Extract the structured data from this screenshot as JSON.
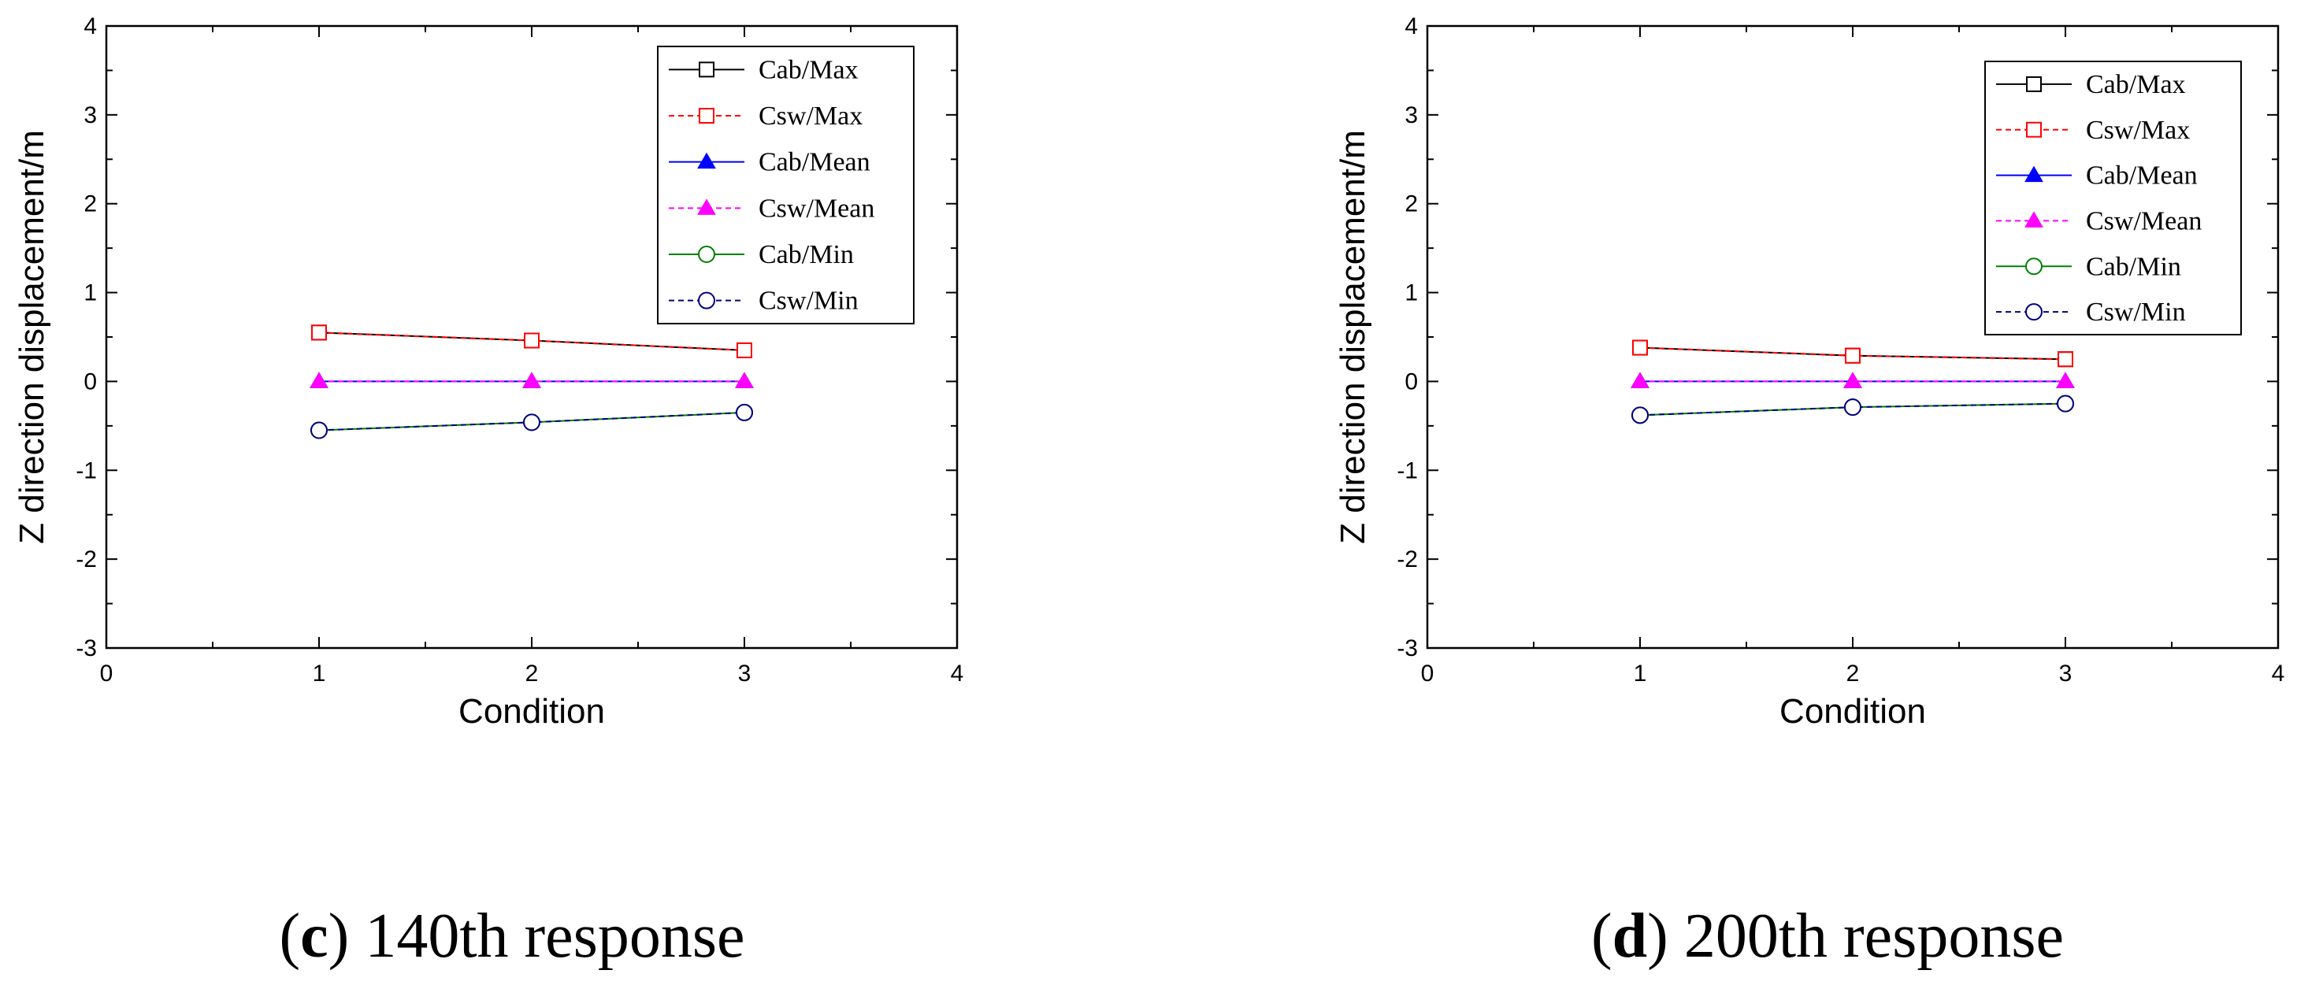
{
  "chart_data": [
    {
      "type": "line",
      "caption": {
        "open": "(",
        "letter": "c",
        "close": ")",
        "text": " 140th response"
      },
      "xlabel": "Condition",
      "ylabel": "Z direction displacement/m",
      "xlim": [
        0,
        4
      ],
      "ylim": [
        -3,
        4
      ],
      "xticks": [
        0,
        1,
        2,
        3,
        4
      ],
      "yticks": [
        -3,
        -2,
        -1,
        0,
        1,
        2,
        3,
        4
      ],
      "grid": false,
      "legend_position": "top-right",
      "x": [
        1,
        2,
        3
      ],
      "series": [
        {
          "name": "Cab/Max",
          "color": "#000000",
          "dash": false,
          "marker": "open-square",
          "values": [
            0.55,
            0.46,
            0.35
          ]
        },
        {
          "name": "Csw/Max",
          "color": "#ff0000",
          "dash": true,
          "marker": "open-square",
          "values": [
            0.55,
            0.46,
            0.35
          ]
        },
        {
          "name": "Cab/Mean",
          "color": "#0000ff",
          "dash": false,
          "marker": "filled-triangle",
          "values": [
            0,
            0,
            0
          ]
        },
        {
          "name": "Csw/Mean",
          "color": "#ff00ff",
          "dash": true,
          "marker": "filled-triangle",
          "values": [
            0,
            0,
            0
          ]
        },
        {
          "name": "Cab/Min",
          "color": "#008000",
          "dash": false,
          "marker": "open-circle",
          "values": [
            -0.55,
            -0.46,
            -0.35
          ]
        },
        {
          "name": "Csw/Min",
          "color": "#000080",
          "dash": true,
          "marker": "open-circle",
          "values": [
            -0.55,
            -0.46,
            -0.35
          ]
        }
      ]
    },
    {
      "type": "line",
      "caption": {
        "open": "(",
        "letter": "d",
        "close": ")",
        "text": " 200th response"
      },
      "xlabel": "Condition",
      "ylabel": "Z direction displacement/m",
      "xlim": [
        0,
        4
      ],
      "ylim": [
        -3,
        4
      ],
      "xticks": [
        0,
        1,
        2,
        3,
        4
      ],
      "yticks": [
        -3,
        -2,
        -1,
        0,
        1,
        2,
        3,
        4
      ],
      "grid": false,
      "legend_position": "top-right",
      "x": [
        1,
        2,
        3
      ],
      "series": [
        {
          "name": "Cab/Max",
          "color": "#000000",
          "dash": false,
          "marker": "open-square",
          "values": [
            0.38,
            0.29,
            0.25
          ]
        },
        {
          "name": "Csw/Max",
          "color": "#ff0000",
          "dash": true,
          "marker": "open-square",
          "values": [
            0.38,
            0.29,
            0.25
          ]
        },
        {
          "name": "Cab/Mean",
          "color": "#0000ff",
          "dash": false,
          "marker": "filled-triangle",
          "values": [
            0,
            0,
            0
          ]
        },
        {
          "name": "Csw/Mean",
          "color": "#ff00ff",
          "dash": true,
          "marker": "filled-triangle",
          "values": [
            0,
            0,
            0
          ]
        },
        {
          "name": "Cab/Min",
          "color": "#008000",
          "dash": false,
          "marker": "open-circle",
          "values": [
            -0.38,
            -0.29,
            -0.25
          ]
        },
        {
          "name": "Csw/Min",
          "color": "#000080",
          "dash": true,
          "marker": "open-circle",
          "values": [
            -0.38,
            -0.29,
            -0.25
          ]
        }
      ]
    }
  ]
}
